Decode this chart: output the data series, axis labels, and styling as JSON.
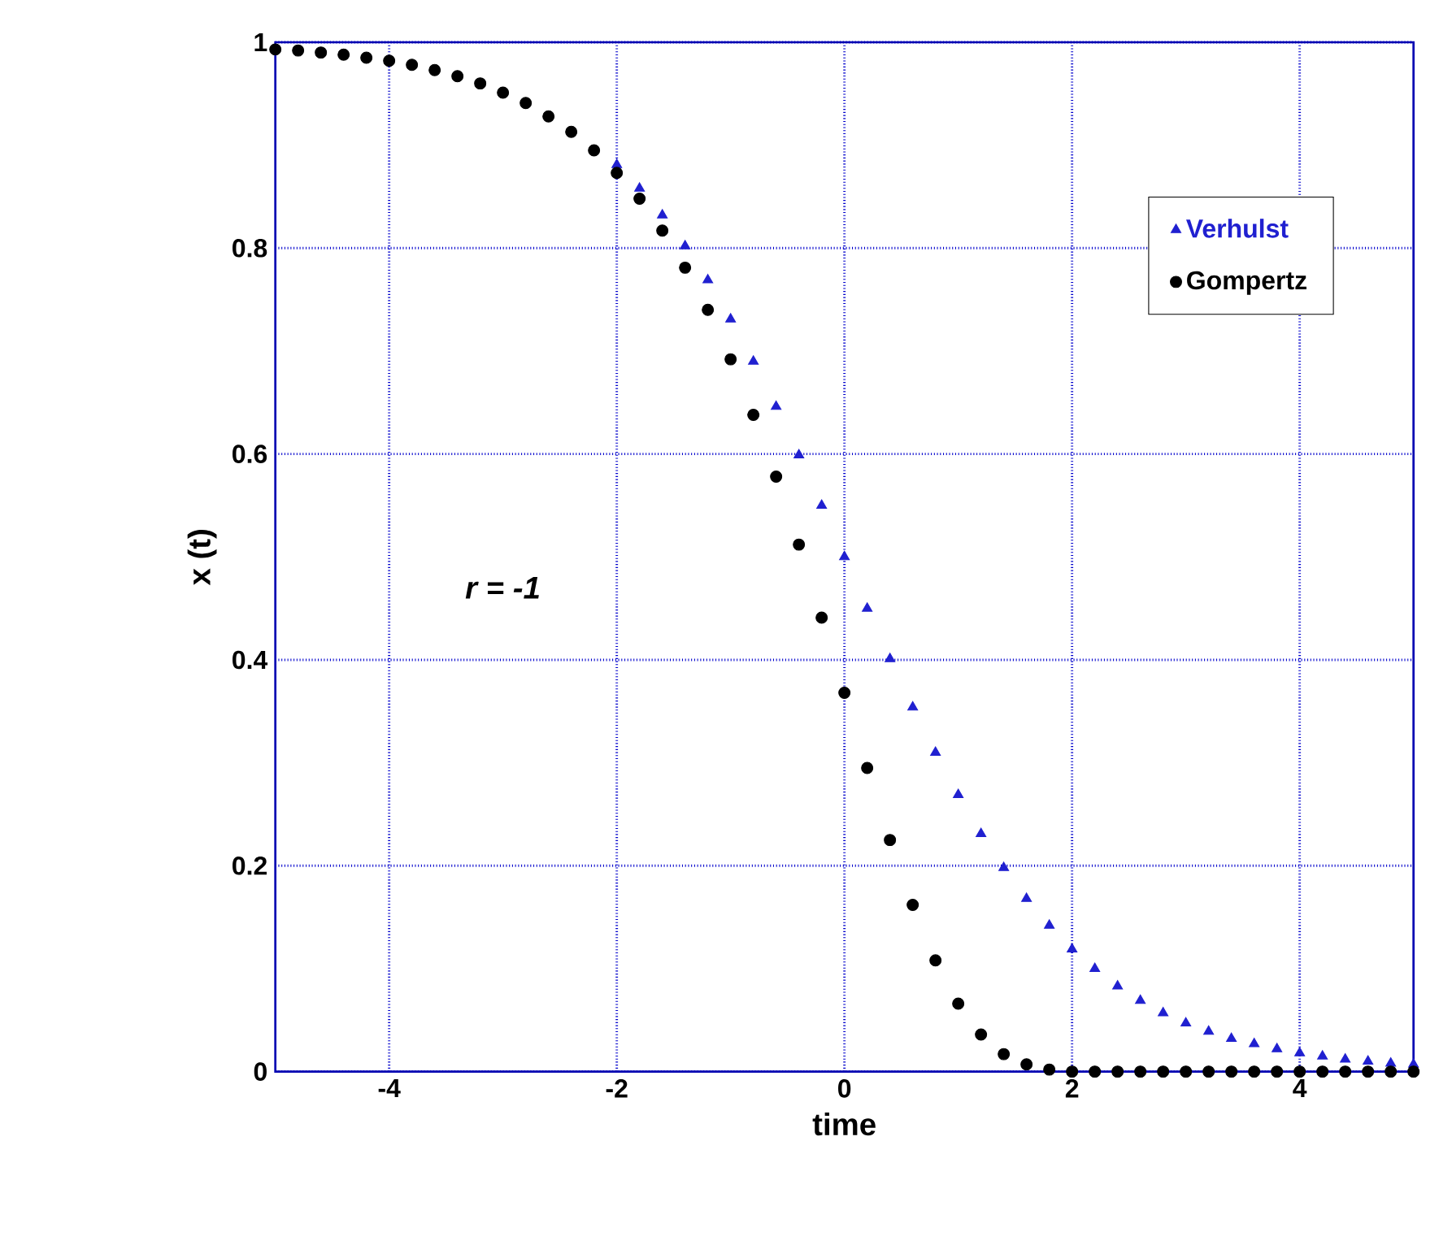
{
  "chart_data": {
    "type": "scatter",
    "xlabel": "time",
    "ylabel": "x (t)",
    "annotations": [
      "*r =  -1*"
    ],
    "xlim": [
      -5,
      5
    ],
    "ylim": [
      0,
      1
    ],
    "xticks": [
      -4,
      -2,
      0,
      2,
      4
    ],
    "yticks": [
      0,
      0.2,
      0.4,
      0.6,
      0.8,
      1
    ],
    "grid": true,
    "legend": "top right",
    "x": [
      -5,
      -4.8,
      -4.6,
      -4.4,
      -4.2,
      -4,
      -3.8,
      -3.6,
      -3.4,
      -3.2,
      -3,
      -2.8,
      -2.6,
      -2.4,
      -2.2,
      -2,
      -1.8,
      -1.6,
      -1.4,
      -1.2,
      -1,
      -0.8,
      -0.6,
      -0.4,
      -0.2,
      0,
      0.2,
      0.4,
      0.6,
      0.8,
      1,
      1.2,
      1.4,
      1.6,
      1.8,
      2,
      2.2,
      2.4,
      2.6,
      2.8,
      3,
      3.2,
      3.4,
      3.6,
      3.8,
      4,
      4.2,
      4.4,
      4.6,
      4.8,
      5
    ],
    "series": [
      {
        "name": "Verhulst",
        "color": "#2020d0",
        "marker": "triangle",
        "values": [
          null,
          null,
          null,
          null,
          null,
          null,
          null,
          null,
          null,
          null,
          null,
          null,
          null,
          null,
          null,
          0.881,
          0.858,
          0.832,
          0.802,
          0.769,
          0.731,
          0.69,
          0.646,
          0.599,
          0.55,
          0.5,
          0.45,
          0.401,
          0.354,
          0.31,
          0.269,
          0.231,
          0.198,
          0.168,
          0.142,
          0.119,
          0.1,
          0.083,
          0.069,
          0.057,
          0.047,
          0.039,
          0.032,
          0.027,
          0.022,
          0.018,
          0.015,
          0.012,
          0.01,
          0.008,
          0.007
        ]
      },
      {
        "name": "Gompertz",
        "color": "#000000",
        "marker": "circle",
        "values": [
          0.993,
          0.992,
          0.99,
          0.988,
          0.985,
          0.982,
          0.978,
          0.973,
          0.967,
          0.96,
          0.951,
          0.941,
          0.928,
          0.913,
          0.895,
          0.873,
          0.848,
          0.817,
          0.781,
          0.74,
          0.692,
          0.638,
          0.578,
          0.512,
          0.441,
          0.368,
          0.295,
          0.225,
          0.162,
          0.108,
          0.066,
          0.036,
          0.017,
          0.007,
          0.002,
          0,
          0,
          0,
          0,
          0,
          0,
          0,
          0,
          0,
          0,
          0,
          0,
          0,
          0,
          0,
          0
        ]
      }
    ]
  }
}
